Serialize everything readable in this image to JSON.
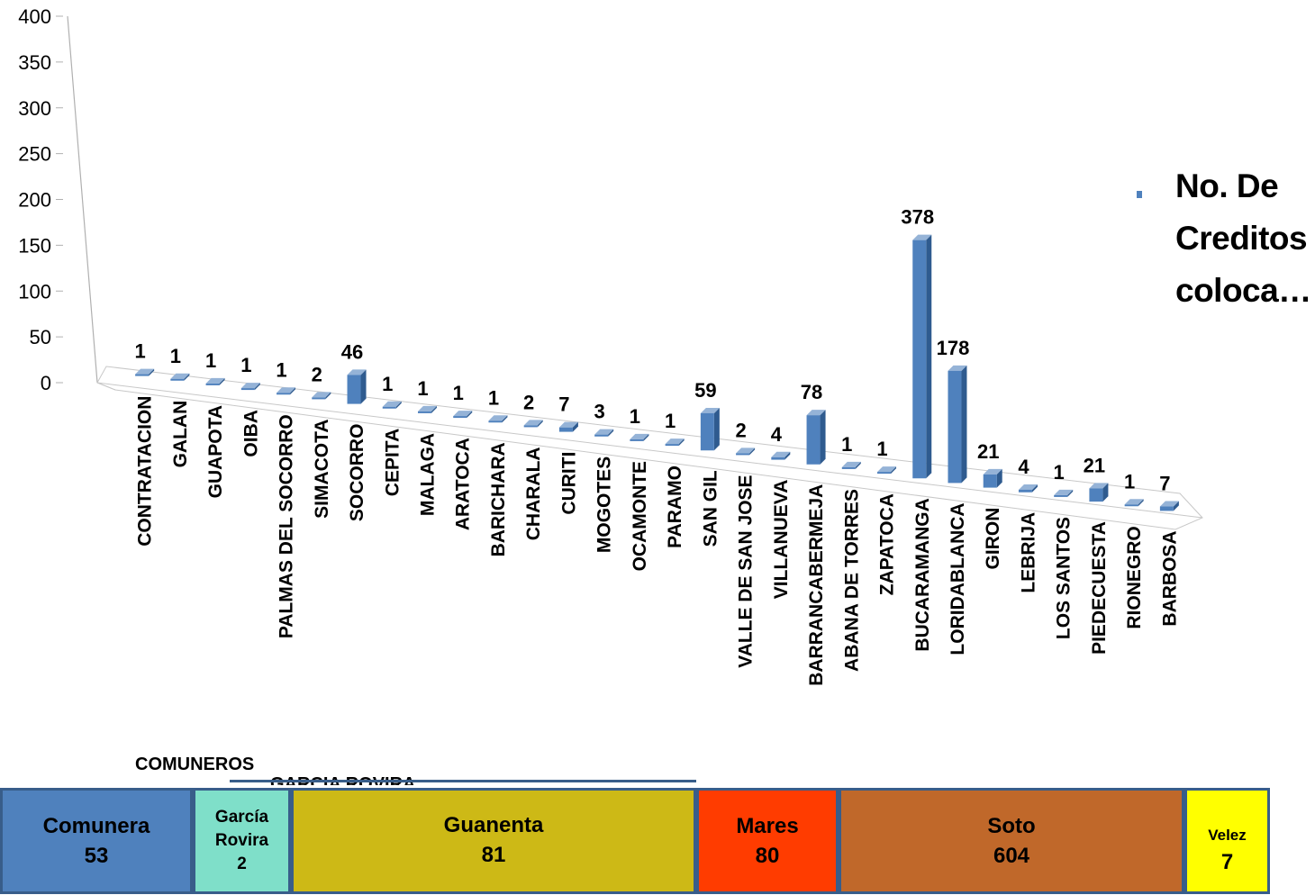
{
  "chart_data": {
    "type": "bar",
    "categories": [
      "CONTRATACION",
      "GALAN",
      "GUAPOTA",
      "OIBA",
      "PALMAS DEL SOCORRO",
      "SIMACOTA",
      "SOCORRO",
      "CEPITA",
      "MALAGA",
      "ARATOCA",
      "BARICHARA",
      "CHARALA",
      "CURITI",
      "MOGOTES",
      "OCAMONTE",
      "PARAMO",
      "SAN GIL",
      "VALLE DE SAN JOSE",
      "VILLANUEVA",
      "BARRANCABERMEJA",
      "SABANA DE TORRES",
      "ZAPATOCA",
      "BUCARAMANGA",
      "FLORIDABLANCA",
      "GIRON",
      "LEBRIJA",
      "LOS SANTOS",
      "PIEDECUESTA",
      "RIONEGRO",
      "BARBOSA"
    ],
    "visible_category_text": [
      "CONTRATACION",
      "GALAN",
      "GUAPOTA",
      "OIBA",
      "PALMAS DEL SOCORRO",
      "SIMACOTA",
      "SOCORRO",
      "CEPITA",
      "MALAGA",
      "ARATOCA",
      "BARICHARA",
      "CHARALA",
      "CURITI",
      "MOGOTES",
      "OCAMONTE",
      "PARAMO",
      "SAN GIL",
      "VALLE DE SAN JOSE",
      "VILLANUEVA",
      "BARRANCABERMEJA",
      "ABANA DE TORRES",
      "ZAPATOCA",
      "BUCARAMANGA",
      "LORIDABLANCA",
      "GIRON",
      "LEBRIJA",
      "LOS SANTOS",
      "PIEDECUESTA",
      "RIONEGRO",
      "BARBOSA"
    ],
    "series": [
      {
        "name": "No. De Creditos coloca…",
        "values": [
          1,
          1,
          1,
          1,
          1,
          2,
          46,
          1,
          1,
          1,
          1,
          2,
          7,
          3,
          1,
          1,
          59,
          2,
          4,
          78,
          1,
          1,
          378,
          178,
          21,
          4,
          1,
          21,
          1,
          7
        ]
      }
    ],
    "yticks": [
      0,
      50,
      100,
      150,
      200,
      250,
      300,
      350,
      400
    ],
    "ylim": [
      0,
      400
    ],
    "legend": {
      "position": "right",
      "label_lines": [
        "No. De",
        "Creditos",
        "coloca…"
      ]
    },
    "color": "#4f81bd"
  },
  "overlay_labels": {
    "comuneros": "COMUNEROS",
    "garcia_rovira_cut": "GARCIA ROVIRA"
  },
  "provinces": [
    {
      "lines": [
        "Comunera",
        "53"
      ],
      "color": "#4f81bd"
    },
    {
      "lines": [
        "García",
        "Rovira",
        "2"
      ],
      "color": "#7fdfc9"
    },
    {
      "lines": [
        "Guanenta",
        "81"
      ],
      "color": "#cdb916"
    },
    {
      "lines": [
        "Mares",
        "80"
      ],
      "color": "#ff3c00"
    },
    {
      "lines": [
        "Soto",
        "604"
      ],
      "color": "#c0682a"
    },
    {
      "lines": [
        "Velez",
        "7"
      ],
      "color": "#ffff00"
    }
  ]
}
